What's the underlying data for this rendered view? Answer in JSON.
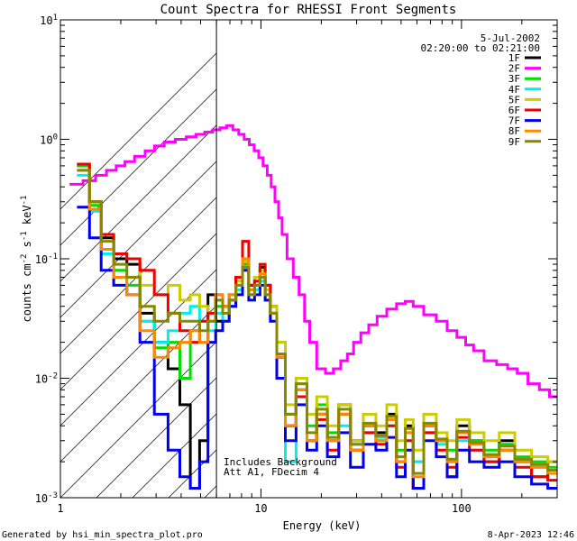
{
  "chart_data": {
    "type": "line",
    "title": "Count Spectra for RHESSI Front Segments",
    "xlabel": "Energy (keV)",
    "ylabel_parts": [
      "counts cm",
      "-2",
      " s",
      "-1",
      " keV",
      "-1"
    ],
    "x_scale": "log",
    "y_scale": "log",
    "xlim": [
      1,
      300
    ],
    "ylim": [
      0.001,
      10
    ],
    "x_ticks": [
      {
        "value": 1,
        "label": "1"
      },
      {
        "value": 10,
        "label": "10"
      },
      {
        "value": 100,
        "label": "100"
      }
    ],
    "y_ticks": [
      {
        "value": 0.001,
        "base": "10",
        "exp": "-3"
      },
      {
        "value": 0.01,
        "base": "10",
        "exp": "-2"
      },
      {
        "value": 0.1,
        "base": "10",
        "exp": "-1"
      },
      {
        "value": 1,
        "base": "10",
        "exp": "0"
      },
      {
        "value": 10,
        "base": "10",
        "exp": "1"
      }
    ],
    "date": "5-Jul-2002",
    "time_range": "02:20:00 to 02:21:00",
    "attenuator_cutoff_keV": 6,
    "annotations": [
      "Includes Background",
      "Att A1, FDecim 4"
    ],
    "series": [
      {
        "name": "1F",
        "color": "#000000",
        "x": [
          1.3,
          1.5,
          1.7,
          2,
          2.3,
          2.7,
          3.2,
          3.7,
          4.2,
          4.7,
          5.2,
          5.7,
          6.2,
          6.7,
          7.2,
          7.8,
          8.4,
          9,
          9.6,
          10.2,
          10.8,
          11.5,
          12.5,
          14,
          16,
          18,
          20,
          23,
          26,
          30,
          35,
          40,
          45,
          50,
          55,
          60,
          70,
          80,
          90,
          100,
          120,
          140,
          170,
          200,
          250,
          290
        ],
        "y": [
          0.6,
          0.3,
          0.15,
          0.1,
          0.09,
          0.035,
          0.02,
          0.012,
          0.006,
          0.0012,
          0.003,
          0.05,
          0.03,
          0.04,
          0.05,
          0.07,
          0.1,
          0.06,
          0.07,
          0.085,
          0.06,
          0.04,
          0.015,
          0.004,
          0.008,
          0.003,
          0.005,
          0.003,
          0.006,
          0.003,
          0.004,
          0.0035,
          0.005,
          0.002,
          0.004,
          0.0012,
          0.004,
          0.003,
          0.0015,
          0.004,
          0.003,
          0.002,
          0.003,
          0.002,
          0.0015,
          0.002
        ]
      },
      {
        "name": "2F",
        "color": "#ff00ff",
        "x": [
          1.2,
          1.4,
          1.6,
          1.8,
          2.0,
          2.2,
          2.5,
          2.8,
          3.1,
          3.5,
          4.0,
          4.5,
          5.0,
          5.5,
          6.0,
          6.5,
          7.0,
          7.5,
          8.0,
          8.5,
          9.0,
          9.5,
          10,
          10.5,
          11,
          11.5,
          12,
          12.5,
          13,
          14,
          15,
          16,
          17,
          18,
          20,
          22,
          24,
          26,
          28,
          30,
          33,
          36,
          40,
          45,
          50,
          55,
          60,
          70,
          80,
          90,
          100,
          110,
          120,
          140,
          160,
          180,
          200,
          230,
          260,
          290
        ],
        "y": [
          0.42,
          0.45,
          0.5,
          0.55,
          0.6,
          0.65,
          0.72,
          0.8,
          0.88,
          0.95,
          1.0,
          1.05,
          1.1,
          1.15,
          1.2,
          1.25,
          1.3,
          1.2,
          1.1,
          1.0,
          0.9,
          0.8,
          0.7,
          0.6,
          0.5,
          0.4,
          0.3,
          0.22,
          0.16,
          0.1,
          0.07,
          0.05,
          0.03,
          0.02,
          0.012,
          0.011,
          0.012,
          0.014,
          0.016,
          0.02,
          0.024,
          0.028,
          0.033,
          0.038,
          0.042,
          0.044,
          0.04,
          0.034,
          0.03,
          0.025,
          0.022,
          0.019,
          0.017,
          0.014,
          0.013,
          0.012,
          0.011,
          0.009,
          0.008,
          0.007
        ]
      },
      {
        "name": "3F",
        "color": "#00dd00",
        "x": [
          1.3,
          1.5,
          1.7,
          2,
          2.3,
          2.7,
          3.2,
          3.7,
          4.2,
          4.7,
          5.2,
          5.7,
          6.2,
          6.7,
          7.2,
          7.8,
          8.4,
          9,
          9.6,
          10.2,
          10.8,
          11.5,
          12.5,
          14,
          16,
          18,
          20,
          23,
          26,
          30,
          35,
          40,
          45,
          50,
          55,
          60,
          70,
          80,
          90,
          100,
          120,
          140,
          170,
          200,
          250,
          290
        ],
        "y": [
          0.6,
          0.28,
          0.12,
          0.08,
          0.06,
          0.03,
          0.018,
          0.02,
          0.01,
          0.025,
          0.02,
          0.03,
          0.04,
          0.03,
          0.045,
          0.06,
          0.09,
          0.05,
          0.06,
          0.07,
          0.05,
          0.035,
          0.02,
          0.005,
          0.009,
          0.004,
          0.006,
          0.0035,
          0.005,
          0.0025,
          0.004,
          0.003,
          0.0045,
          0.0025,
          0.0035,
          0.002,
          0.004,
          0.003,
          0.0025,
          0.0035,
          0.003,
          0.0025,
          0.0028,
          0.0022,
          0.002,
          0.0018
        ]
      },
      {
        "name": "4F",
        "color": "#00eeee",
        "x": [
          1.3,
          1.5,
          1.7,
          2,
          2.3,
          2.7,
          3.2,
          3.7,
          4.2,
          4.7,
          5.2,
          5.7,
          6.2,
          6.7,
          7.2,
          7.8,
          8.4,
          9,
          9.6,
          10.2,
          10.8,
          11.5,
          12.5,
          14,
          16,
          18,
          20,
          23,
          26,
          30,
          35,
          40,
          45,
          50,
          55,
          60,
          70,
          80,
          90,
          100,
          120,
          140,
          170,
          200,
          250,
          290
        ],
        "y": [
          0.5,
          0.25,
          0.11,
          0.07,
          0.05,
          0.03,
          0.02,
          0.025,
          0.035,
          0.04,
          0.03,
          0.025,
          0.035,
          0.03,
          0.04,
          0.055,
          0.08,
          0.05,
          0.055,
          0.065,
          0.045,
          0.03,
          0.01,
          0.002,
          0.008,
          0.003,
          0.005,
          0.003,
          0.004,
          0.0028,
          0.0035,
          0.0032,
          0.004,
          0.0022,
          0.003,
          0.002,
          0.0035,
          0.0028,
          0.002,
          0.003,
          0.0025,
          0.0022,
          0.0025,
          0.002,
          0.0018,
          0.0016
        ]
      },
      {
        "name": "5F",
        "color": "#cccc00",
        "x": [
          1.3,
          1.5,
          1.7,
          2,
          2.3,
          2.7,
          3.2,
          3.7,
          4.2,
          4.7,
          5.2,
          5.7,
          6.2,
          6.7,
          7.2,
          7.8,
          8.4,
          9,
          9.6,
          10.2,
          10.8,
          11.5,
          12.5,
          14,
          16,
          18,
          20,
          23,
          26,
          30,
          35,
          40,
          45,
          50,
          55,
          60,
          70,
          80,
          90,
          100,
          120,
          140,
          170,
          200,
          250,
          290
        ],
        "y": [
          0.62,
          0.3,
          0.16,
          0.11,
          0.1,
          0.06,
          0.05,
          0.06,
          0.045,
          0.05,
          0.04,
          0.035,
          0.045,
          0.04,
          0.05,
          0.065,
          0.095,
          0.055,
          0.07,
          0.08,
          0.055,
          0.04,
          0.02,
          0.006,
          0.01,
          0.005,
          0.007,
          0.004,
          0.006,
          0.003,
          0.005,
          0.004,
          0.006,
          0.003,
          0.0045,
          0.0025,
          0.005,
          0.0035,
          0.003,
          0.0045,
          0.0035,
          0.003,
          0.0035,
          0.0025,
          0.0022,
          0.002
        ]
      },
      {
        "name": "6F",
        "color": "#ee0000",
        "x": [
          1.3,
          1.5,
          1.7,
          2,
          2.3,
          2.7,
          3.2,
          3.7,
          4.2,
          4.7,
          5.2,
          5.7,
          6.2,
          6.7,
          7.2,
          7.8,
          8.4,
          9,
          9.6,
          10.2,
          10.8,
          11.5,
          12.5,
          14,
          16,
          18,
          20,
          23,
          26,
          30,
          35,
          40,
          45,
          50,
          55,
          60,
          70,
          80,
          90,
          100,
          120,
          140,
          170,
          200,
          250,
          290
        ],
        "y": [
          0.62,
          0.3,
          0.16,
          0.11,
          0.1,
          0.08,
          0.05,
          0.035,
          0.025,
          0.02,
          0.03,
          0.035,
          0.05,
          0.04,
          0.045,
          0.07,
          0.14,
          0.06,
          0.065,
          0.09,
          0.06,
          0.035,
          0.015,
          0.004,
          0.007,
          0.003,
          0.0045,
          0.0025,
          0.005,
          0.0025,
          0.0035,
          0.0028,
          0.004,
          0.0018,
          0.003,
          0.0012,
          0.0035,
          0.0025,
          0.0018,
          0.0032,
          0.0025,
          0.002,
          0.0025,
          0.0018,
          0.0015,
          0.0014
        ]
      },
      {
        "name": "7F",
        "color": "#0000ee",
        "x": [
          1.3,
          1.5,
          1.7,
          2,
          2.3,
          2.7,
          3.2,
          3.7,
          4.2,
          4.7,
          5.2,
          5.7,
          6.2,
          6.7,
          7.2,
          7.8,
          8.4,
          9,
          9.6,
          10.2,
          10.8,
          11.5,
          12.5,
          14,
          16,
          18,
          20,
          23,
          26,
          30,
          35,
          40,
          45,
          50,
          55,
          60,
          70,
          80,
          90,
          100,
          120,
          140,
          170,
          200,
          250,
          290
        ],
        "y": [
          0.27,
          0.15,
          0.08,
          0.06,
          0.05,
          0.02,
          0.005,
          0.0025,
          0.0015,
          0.0012,
          0.002,
          0.02,
          0.025,
          0.03,
          0.04,
          0.05,
          0.08,
          0.045,
          0.05,
          0.06,
          0.045,
          0.03,
          0.01,
          0.003,
          0.006,
          0.0025,
          0.004,
          0.0022,
          0.0035,
          0.0018,
          0.0028,
          0.0025,
          0.0032,
          0.0015,
          0.0025,
          0.0012,
          0.003,
          0.0022,
          0.0015,
          0.0025,
          0.002,
          0.0018,
          0.002,
          0.0015,
          0.0013,
          0.0012
        ]
      },
      {
        "name": "8F",
        "color": "#ff8800",
        "x": [
          1.3,
          1.5,
          1.7,
          2,
          2.3,
          2.7,
          3.2,
          3.7,
          4.2,
          4.7,
          5.2,
          5.7,
          6.2,
          6.7,
          7.2,
          7.8,
          8.4,
          9,
          9.6,
          10.2,
          10.8,
          11.5,
          12.5,
          14,
          16,
          18,
          20,
          23,
          26,
          30,
          35,
          40,
          45,
          50,
          55,
          60,
          70,
          80,
          90,
          100,
          120,
          140,
          170,
          200,
          250,
          290
        ],
        "y": [
          0.55,
          0.26,
          0.12,
          0.07,
          0.05,
          0.025,
          0.015,
          0.018,
          0.02,
          0.025,
          0.02,
          0.03,
          0.05,
          0.04,
          0.05,
          0.06,
          0.1,
          0.055,
          0.06,
          0.075,
          0.05,
          0.035,
          0.015,
          0.004,
          0.008,
          0.003,
          0.005,
          0.003,
          0.005,
          0.0025,
          0.004,
          0.003,
          0.0045,
          0.002,
          0.0035,
          0.0015,
          0.004,
          0.003,
          0.002,
          0.0035,
          0.0028,
          0.0022,
          0.0025,
          0.002,
          0.0018,
          0.0016
        ]
      },
      {
        "name": "9F",
        "color": "#888800",
        "x": [
          1.3,
          1.5,
          1.7,
          2,
          2.3,
          2.7,
          3.2,
          3.7,
          4.2,
          4.7,
          5.2,
          5.7,
          6.2,
          6.7,
          7.2,
          7.8,
          8.4,
          9,
          9.6,
          10.2,
          10.8,
          11.5,
          12.5,
          14,
          16,
          18,
          20,
          23,
          26,
          30,
          35,
          40,
          45,
          50,
          55,
          60,
          70,
          80,
          90,
          100,
          120,
          140,
          170,
          200,
          250,
          290
        ],
        "y": [
          0.55,
          0.3,
          0.14,
          0.09,
          0.07,
          0.04,
          0.03,
          0.035,
          0.03,
          0.03,
          0.025,
          0.03,
          0.045,
          0.035,
          0.045,
          0.06,
          0.085,
          0.05,
          0.06,
          0.07,
          0.05,
          0.035,
          0.016,
          0.005,
          0.009,
          0.0035,
          0.0055,
          0.0032,
          0.0055,
          0.0028,
          0.0042,
          0.0033,
          0.0048,
          0.0022,
          0.0038,
          0.0016,
          0.0042,
          0.0031,
          0.0021,
          0.0036,
          0.0029,
          0.0023,
          0.0027,
          0.0021,
          0.0019,
          0.0017
        ]
      }
    ]
  },
  "footer": {
    "generated_by": "Generated by hsi_min_spectra_plot.pro",
    "timestamp": "8-Apr-2023 12:46"
  }
}
